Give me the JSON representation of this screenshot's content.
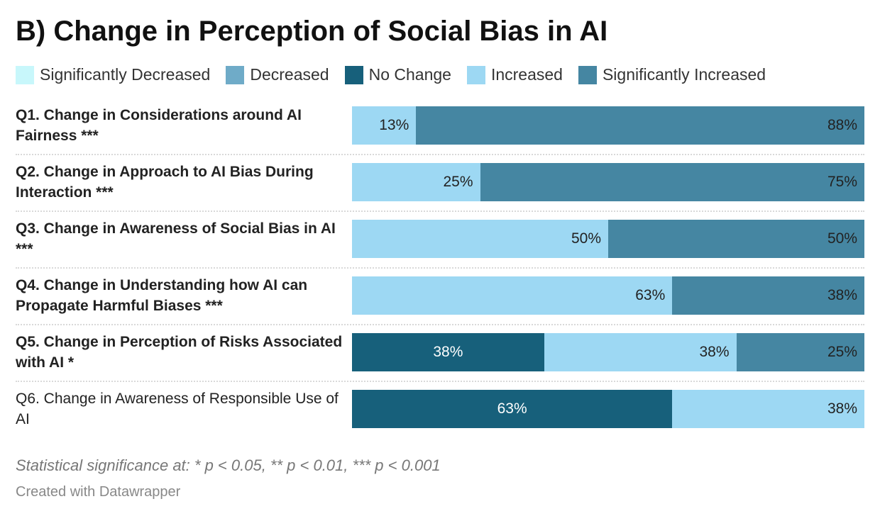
{
  "chart_data": {
    "type": "bar",
    "orientation": "horizontal-stacked",
    "title": "B) Change in Perception of Social Bias in AI",
    "legend": [
      {
        "name": "Significantly Decreased",
        "color": "#c8f7fb"
      },
      {
        "name": "Decreased",
        "color": "#6fabc8"
      },
      {
        "name": "No Change",
        "color": "#17607b"
      },
      {
        "name": "Increased",
        "color": "#9dd8f3"
      },
      {
        "name": "Significantly Increased",
        "color": "#4586a2"
      }
    ],
    "categories": [
      "Q1. Change in Considerations around AI Fairness ***",
      "Q2. Change in Approach to AI Bias During Interaction ***",
      "Q3. Change in Awareness of Social Bias in AI ***",
      "Q4. Change in Understanding how AI can Propagate Harmful Biases ***",
      "Q5. Change in Perception of Risks Associated with AI *",
      "Q6. Change in Awareness of Responsible Use of AI"
    ],
    "bold_categories": [
      true,
      true,
      true,
      true,
      true,
      false
    ],
    "series": [
      {
        "name": "Significantly Decreased",
        "values": [
          0,
          0,
          0,
          0,
          0,
          0
        ]
      },
      {
        "name": "Decreased",
        "values": [
          0,
          0,
          0,
          0,
          0,
          0
        ]
      },
      {
        "name": "No Change",
        "values": [
          0,
          0,
          0,
          0,
          37.5,
          62.5
        ],
        "labels": [
          "",
          "",
          "",
          "",
          "38%",
          "63%"
        ]
      },
      {
        "name": "Increased",
        "values": [
          12.5,
          25,
          50,
          62.5,
          37.5,
          37.5
        ],
        "labels": [
          "13%",
          "25%",
          "50%",
          "63%",
          "38%",
          "38%"
        ]
      },
      {
        "name": "Significantly Increased",
        "values": [
          87.5,
          75,
          50,
          37.5,
          25,
          0
        ],
        "labels": [
          "88%",
          "75%",
          "50%",
          "38%",
          "25%",
          ""
        ]
      }
    ],
    "xlim": [
      0,
      100
    ],
    "unit": "%"
  },
  "footnote": "Statistical significance at: * p < 0.05, ** p < 0.01, *** p < 0.001",
  "credit": "Created with Datawrapper"
}
